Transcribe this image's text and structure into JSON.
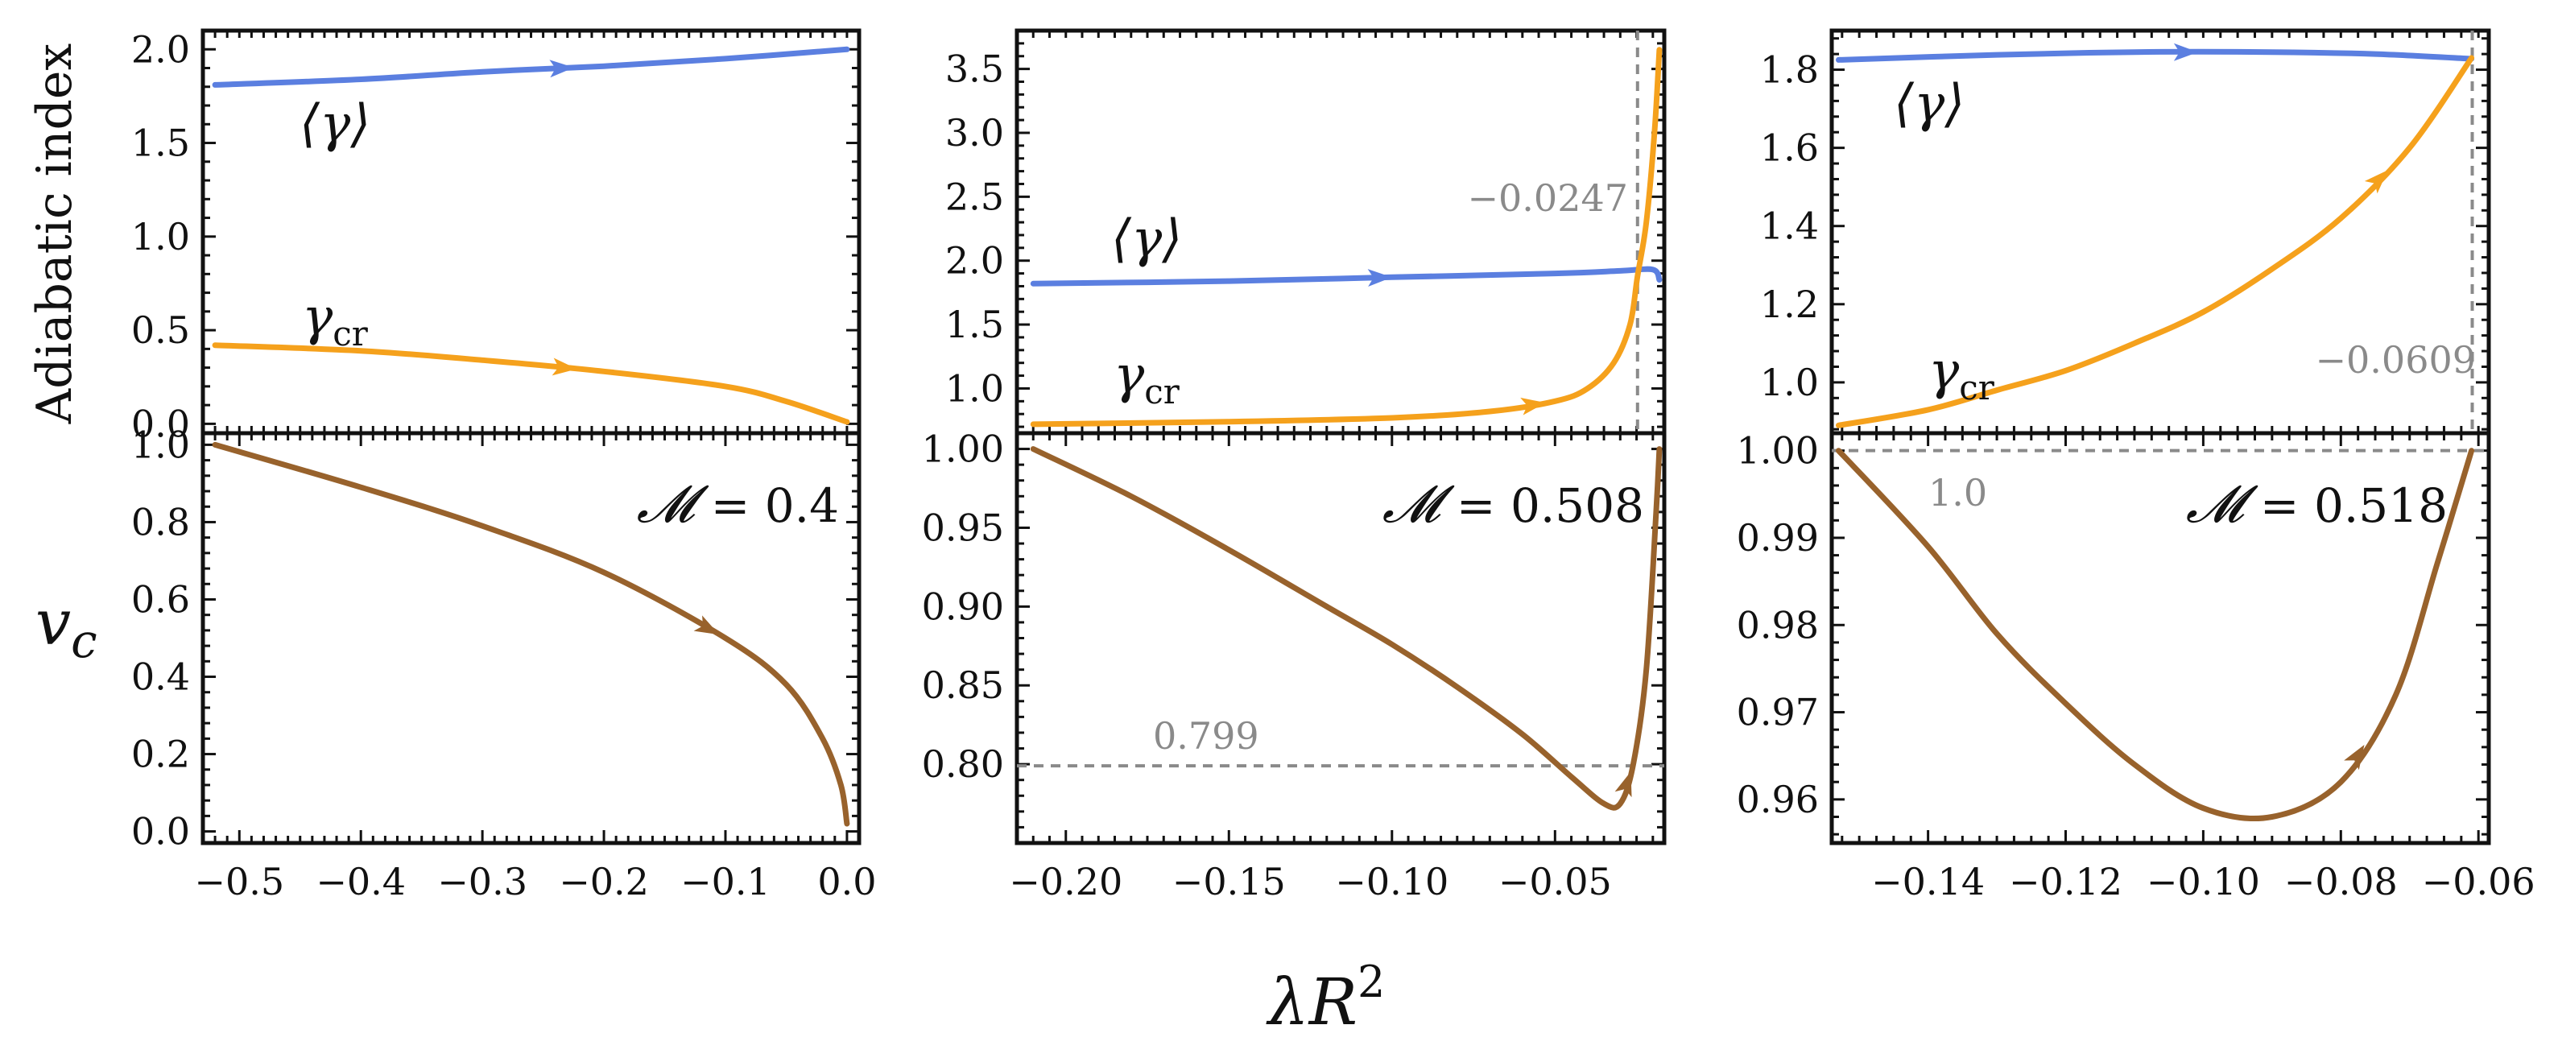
{
  "figure": {
    "ylabel_top": "Adiabatic index",
    "ylabel_bottom": "v",
    "ylabel_bottom_sub": "c",
    "xlabel": "λR",
    "xlabel_sup": "2"
  },
  "colors": {
    "avg_gamma": "#5b7fe0",
    "gamma_cr": "#f5a11c",
    "vc": "#98622c",
    "ref_line": "#8a8a8a",
    "axis": "#111111"
  },
  "chart_data": [
    {
      "type": "line",
      "panel": "top-left",
      "xlim": [
        -0.53,
        0.01
      ],
      "ylim": [
        -0.05,
        2.1
      ],
      "yticks": [
        0.0,
        0.5,
        1.0,
        1.5,
        2.0
      ],
      "ytick_labels": [
        "0.0",
        "0.5",
        "1.0",
        "1.5",
        "2.0"
      ],
      "series": [
        {
          "name": "⟨γ⟩",
          "color_key": "avg_gamma",
          "x": [
            -0.52,
            -0.4,
            -0.3,
            -0.2,
            -0.1,
            0.0
          ],
          "y": [
            1.81,
            1.84,
            1.88,
            1.91,
            1.95,
            2.0
          ]
        },
        {
          "name": "γ_cr",
          "color_key": "gamma_cr",
          "x": [
            -0.52,
            -0.4,
            -0.3,
            -0.2,
            -0.1,
            -0.05,
            0.0
          ],
          "y": [
            0.42,
            0.39,
            0.34,
            0.28,
            0.2,
            0.12,
            0.01
          ]
        }
      ],
      "labels": {
        "avg_gamma": "⟨γ⟩",
        "gamma_cr_base": "γ",
        "gamma_cr_sub": "cr"
      }
    },
    {
      "type": "line",
      "panel": "top-middle",
      "xlim": [
        -0.215,
        -0.0165
      ],
      "ylim": [
        0.65,
        3.8
      ],
      "yticks": [
        1.0,
        1.5,
        2.0,
        2.5,
        3.0,
        3.5
      ],
      "ytick_labels": [
        "1.0",
        "1.5",
        "2.0",
        "2.5",
        "3.0",
        "3.5"
      ],
      "series": [
        {
          "name": "⟨γ⟩",
          "color_key": "avg_gamma",
          "x": [
            -0.21,
            -0.15,
            -0.1,
            -0.05,
            -0.03,
            -0.02,
            -0.018
          ],
          "y": [
            1.82,
            1.84,
            1.87,
            1.9,
            1.92,
            1.93,
            1.85
          ]
        },
        {
          "name": "γ_cr",
          "color_key": "gamma_cr",
          "x": [
            -0.21,
            -0.15,
            -0.1,
            -0.07,
            -0.05,
            -0.04,
            -0.032,
            -0.027,
            -0.0247,
            -0.022,
            -0.0195,
            -0.018
          ],
          "y": [
            0.72,
            0.74,
            0.77,
            0.82,
            0.9,
            1.0,
            1.2,
            1.5,
            1.88,
            2.3,
            3.0,
            3.65
          ]
        }
      ],
      "vline": -0.0247,
      "vline_label": "−0.0247",
      "labels": {
        "avg_gamma": "⟨γ⟩",
        "gamma_cr_base": "γ",
        "gamma_cr_sub": "cr"
      }
    },
    {
      "type": "line",
      "panel": "top-right",
      "xlim": [
        -0.154,
        -0.0585
      ],
      "ylim": [
        0.87,
        1.9
      ],
      "yticks": [
        1.0,
        1.2,
        1.4,
        1.6,
        1.8
      ],
      "ytick_labels": [
        "1.0",
        "1.2",
        "1.4",
        "1.6",
        "1.8"
      ],
      "series": [
        {
          "name": "⟨γ⟩",
          "color_key": "avg_gamma",
          "x": [
            -0.153,
            -0.13,
            -0.11,
            -0.09,
            -0.075,
            -0.061
          ],
          "y": [
            1.825,
            1.838,
            1.845,
            1.845,
            1.84,
            1.828
          ]
        },
        {
          "name": "γ_cr",
          "color_key": "gamma_cr",
          "x": [
            -0.153,
            -0.14,
            -0.13,
            -0.12,
            -0.11,
            -0.1,
            -0.09,
            -0.08,
            -0.07,
            -0.061
          ],
          "y": [
            0.89,
            0.93,
            0.98,
            1.03,
            1.1,
            1.18,
            1.29,
            1.42,
            1.6,
            1.83
          ]
        }
      ],
      "vline": -0.0609,
      "vline_label": "−0.0609",
      "labels": {
        "avg_gamma": "⟨γ⟩",
        "gamma_cr_base": "γ",
        "gamma_cr_sub": "cr"
      }
    },
    {
      "type": "line",
      "panel": "bottom-left",
      "xlim": [
        -0.53,
        0.01
      ],
      "ylim": [
        -0.03,
        1.03
      ],
      "yticks": [
        0.0,
        0.2,
        0.4,
        0.6,
        0.8,
        1.0
      ],
      "ytick_labels": [
        "0.0",
        "0.2",
        "0.4",
        "0.6",
        "0.8",
        "1.0"
      ],
      "xticks": [
        -0.5,
        -0.4,
        -0.3,
        -0.2,
        -0.1,
        0.0
      ],
      "xtick_labels": [
        "−0.5",
        "−0.4",
        "−0.3",
        "−0.2",
        "−0.1",
        "0.0"
      ],
      "series": [
        {
          "name": "v_c",
          "color_key": "vc",
          "x": [
            -0.52,
            -0.4,
            -0.3,
            -0.2,
            -0.1,
            -0.05,
            -0.02,
            -0.005,
            0.0
          ],
          "y": [
            1.0,
            0.89,
            0.79,
            0.67,
            0.5,
            0.38,
            0.24,
            0.12,
            0.02
          ]
        }
      ],
      "mass_label": "= 0.4"
    },
    {
      "type": "line",
      "panel": "bottom-middle",
      "xlim": [
        -0.215,
        -0.0165
      ],
      "ylim": [
        0.75,
        1.01
      ],
      "yticks": [
        0.8,
        0.85,
        0.9,
        0.95,
        1.0
      ],
      "ytick_labels": [
        "0.80",
        "0.85",
        "0.90",
        "0.95",
        "1.00"
      ],
      "xticks": [
        -0.2,
        -0.15,
        -0.1,
        -0.05
      ],
      "xtick_labels": [
        "−0.20",
        "−0.15",
        "−0.10",
        "−0.05"
      ],
      "series": [
        {
          "name": "v_c",
          "color_key": "vc",
          "x": [
            -0.21,
            -0.18,
            -0.15,
            -0.12,
            -0.1,
            -0.08,
            -0.06,
            -0.045,
            -0.035,
            -0.03,
            -0.026,
            -0.022,
            -0.019,
            -0.018
          ],
          "y": [
            1.0,
            0.97,
            0.936,
            0.9,
            0.876,
            0.849,
            0.819,
            0.792,
            0.775,
            0.775,
            0.8,
            0.86,
            0.96,
            1.0
          ]
        }
      ],
      "hline": 0.799,
      "hline_label": "0.799",
      "mass_label": "= 0.508"
    },
    {
      "type": "line",
      "panel": "bottom-right",
      "xlim": [
        -0.154,
        -0.0585
      ],
      "ylim": [
        0.955,
        1.002
      ],
      "yticks": [
        0.96,
        0.97,
        0.98,
        0.99,
        1.0
      ],
      "ytick_labels": [
        "0.96",
        "0.97",
        "0.98",
        "0.99",
        "1.00"
      ],
      "xticks": [
        -0.14,
        -0.12,
        -0.1,
        -0.08,
        -0.06
      ],
      "xtick_labels": [
        "−0.14",
        "−0.12",
        "−0.10",
        "−0.08",
        "−0.06"
      ],
      "series": [
        {
          "name": "v_c",
          "color_key": "vc",
          "x": [
            -0.153,
            -0.14,
            -0.13,
            -0.12,
            -0.11,
            -0.1,
            -0.09,
            -0.08,
            -0.072,
            -0.066,
            -0.061
          ],
          "y": [
            1.0,
            0.989,
            0.979,
            0.971,
            0.964,
            0.959,
            0.958,
            0.962,
            0.972,
            0.987,
            1.0
          ]
        }
      ],
      "hline": 1.0,
      "hline_label": "1.0",
      "mass_label": "= 0.518"
    }
  ]
}
